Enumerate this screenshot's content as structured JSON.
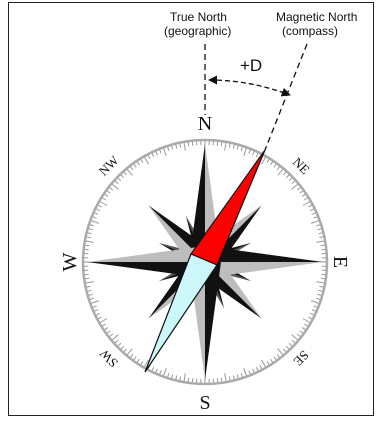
{
  "labels": {
    "true_north_line1": "True North",
    "true_north_line2": "(geographic)",
    "magnetic_north_line1": "Magnetic North",
    "magnetic_north_line2": "(compass)",
    "declination": "+D"
  },
  "directions": {
    "n": "N",
    "e": "E",
    "s": "S",
    "w": "W",
    "ne": "NE",
    "se": "SE",
    "sw": "SW",
    "nw": "NW"
  },
  "colors": {
    "needle_north": "#ff0000",
    "needle_south": "#ccf7fb",
    "rose_dark": "#111111",
    "rose_light": "#bdbdbd"
  }
}
